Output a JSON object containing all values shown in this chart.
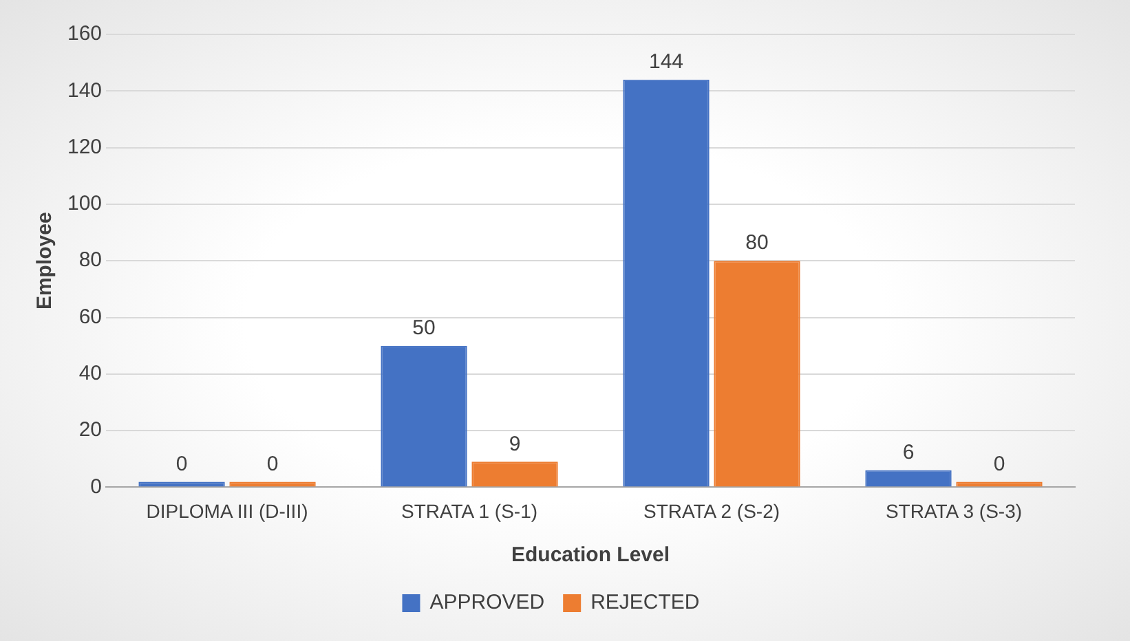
{
  "chart_data": {
    "type": "bar",
    "xlabel": "Education Level",
    "ylabel": "Employee",
    "categories": [
      "DIPLOMA III (D-III)",
      "STRATA 1 (S-1)",
      "STRATA 2 (S-2)",
      "STRATA 3 (S-3)"
    ],
    "series": [
      {
        "name": "APPROVED",
        "color": "#4472c4",
        "values": [
          0,
          50,
          144,
          6
        ]
      },
      {
        "name": "REJECTED",
        "color": "#ed7d31",
        "values": [
          0,
          9,
          80,
          0
        ]
      }
    ],
    "ylim": [
      0,
      160
    ],
    "yticks": [
      0,
      20,
      40,
      60,
      80,
      100,
      120,
      140,
      160
    ],
    "grid": "y",
    "legend": "bottom",
    "data_labels": true
  }
}
